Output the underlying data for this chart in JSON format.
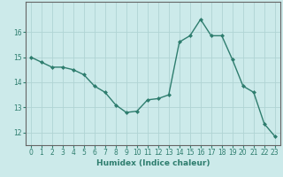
{
  "x": [
    0,
    1,
    2,
    3,
    4,
    5,
    6,
    7,
    8,
    9,
    10,
    11,
    12,
    13,
    14,
    15,
    16,
    17,
    18,
    19,
    20,
    21,
    22,
    23
  ],
  "y": [
    15.0,
    14.8,
    14.6,
    14.6,
    14.5,
    14.3,
    13.85,
    13.6,
    13.1,
    12.8,
    12.85,
    13.3,
    13.35,
    13.5,
    15.6,
    15.85,
    16.5,
    15.85,
    15.85,
    14.9,
    13.85,
    13.6,
    12.35,
    11.85
  ],
  "line_color": "#2e7d6e",
  "marker": "D",
  "markersize": 2.0,
  "linewidth": 1.0,
  "xlabel": "Humidex (Indice chaleur)",
  "bg_color": "#cceaea",
  "grid_color": "#b0d4d4",
  "ylim": [
    11.5,
    17.2
  ],
  "yticks": [
    12,
    13,
    14,
    15,
    16
  ],
  "xticks": [
    0,
    1,
    2,
    3,
    4,
    5,
    6,
    7,
    8,
    9,
    10,
    11,
    12,
    13,
    14,
    15,
    16,
    17,
    18,
    19,
    20,
    21,
    22,
    23
  ],
  "label_fontsize": 6.5,
  "tick_fontsize": 5.5
}
